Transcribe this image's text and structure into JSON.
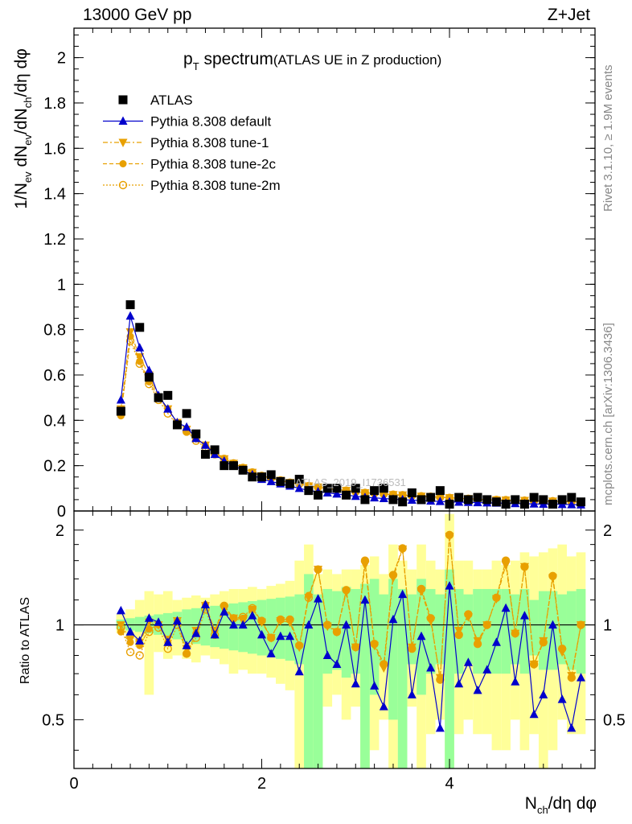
{
  "header": {
    "left": "13000 GeV pp",
    "right": "Z+Jet"
  },
  "side": {
    "rivet": "Rivet 3.1.10, ≥ 1.9M events",
    "mcplots": "mcplots.cern.ch [arXiv:1306.3436]"
  },
  "watermark": "ATLAS_2019_I1736531",
  "colors": {
    "data": "#000000",
    "default": "#0000cc",
    "tunes": "#e8a000",
    "band_outer": "#ffff99",
    "band_inner": "#99ff99"
  },
  "chart_data": [
    {
      "type": "scatter",
      "title_main": "p",
      "title_sub": "T",
      "title_rest": " spectrum",
      "title_note": "(ATLAS UE in Z production)",
      "ylabel": "1/N_ev dN_ev/dN_ch/dη dφ",
      "xlim": [
        0,
        5.55
      ],
      "ylim": [
        0,
        2.13
      ],
      "yticks": [
        "0",
        "0.2",
        "0.4",
        "0.6",
        "0.8",
        "1",
        "1.2",
        "1.4",
        "1.6",
        "1.8",
        "2"
      ],
      "x": [
        0.5,
        0.6,
        0.7,
        0.8,
        0.9,
        1.0,
        1.1,
        1.2,
        1.3,
        1.4,
        1.5,
        1.6,
        1.7,
        1.8,
        1.9,
        2.0,
        2.1,
        2.2,
        2.3,
        2.4,
        2.5,
        2.6,
        2.7,
        2.8,
        2.9,
        3.0,
        3.1,
        3.2,
        3.3,
        3.4,
        3.5,
        3.6,
        3.7,
        3.8,
        3.9,
        4.0,
        4.1,
        4.2,
        4.3,
        4.4,
        4.5,
        4.6,
        4.7,
        4.8,
        4.9,
        5.0,
        5.1,
        5.2,
        5.3,
        5.4
      ],
      "series": [
        {
          "name": "ATLAS",
          "key": "data",
          "values": [
            0.44,
            0.91,
            0.81,
            0.59,
            0.5,
            0.51,
            0.38,
            0.43,
            0.34,
            0.25,
            0.27,
            0.2,
            0.2,
            0.18,
            0.15,
            0.15,
            0.16,
            0.13,
            0.12,
            0.14,
            0.09,
            0.07,
            0.1,
            0.1,
            0.07,
            0.1,
            0.05,
            0.09,
            0.1,
            0.05,
            0.04,
            0.08,
            0.05,
            0.06,
            0.09,
            0.03,
            0.06,
            0.05,
            0.06,
            0.05,
            0.04,
            0.03,
            0.05,
            0.03,
            0.06,
            0.05,
            0.03,
            0.05,
            0.06,
            0.04
          ]
        },
        {
          "name": "Pythia 8.308 default",
          "key": "default",
          "values": [
            0.49,
            0.86,
            0.72,
            0.62,
            0.51,
            0.45,
            0.39,
            0.37,
            0.32,
            0.29,
            0.25,
            0.22,
            0.2,
            0.18,
            0.16,
            0.14,
            0.13,
            0.12,
            0.11,
            0.1,
            0.09,
            0.085,
            0.08,
            0.075,
            0.07,
            0.065,
            0.06,
            0.058,
            0.055,
            0.052,
            0.05,
            0.048,
            0.046,
            0.044,
            0.042,
            0.04,
            0.039,
            0.038,
            0.037,
            0.036,
            0.035,
            0.034,
            0.033,
            0.032,
            0.031,
            0.03,
            0.03,
            0.029,
            0.028,
            0.027
          ]
        },
        {
          "name": "Pythia 8.308 tune-1",
          "key": "tune1",
          "values": [
            0.45,
            0.79,
            0.68,
            0.6,
            0.5,
            0.45,
            0.39,
            0.36,
            0.32,
            0.29,
            0.26,
            0.23,
            0.21,
            0.19,
            0.17,
            0.155,
            0.145,
            0.135,
            0.125,
            0.12,
            0.11,
            0.105,
            0.1,
            0.095,
            0.09,
            0.085,
            0.08,
            0.078,
            0.075,
            0.072,
            0.07,
            0.067,
            0.065,
            0.063,
            0.06,
            0.058,
            0.056,
            0.054,
            0.052,
            0.05,
            0.049,
            0.048,
            0.047,
            0.046,
            0.045,
            0.044,
            0.043,
            0.042,
            0.041,
            0.04
          ]
        },
        {
          "name": "Pythia 8.308 tune-2c",
          "key": "tune2c",
          "values": [
            0.42,
            0.77,
            0.66,
            0.57,
            0.5,
            0.45,
            0.39,
            0.35,
            0.32,
            0.29,
            0.26,
            0.23,
            0.21,
            0.19,
            0.17,
            0.155,
            0.145,
            0.135,
            0.125,
            0.12,
            0.11,
            0.105,
            0.1,
            0.095,
            0.09,
            0.085,
            0.08,
            0.078,
            0.075,
            0.072,
            0.07,
            0.067,
            0.065,
            0.063,
            0.06,
            0.058,
            0.056,
            0.054,
            0.052,
            0.05,
            0.049,
            0.048,
            0.047,
            0.046,
            0.045,
            0.044,
            0.043,
            0.042,
            0.041,
            0.04
          ]
        },
        {
          "name": "Pythia 8.308 tune-2m",
          "key": "tune2m",
          "values": [
            0.43,
            0.75,
            0.65,
            0.56,
            0.49,
            0.43,
            0.38,
            0.35,
            0.31,
            0.28,
            0.25,
            0.23,
            0.21,
            0.19,
            0.17,
            0.155,
            0.145,
            0.135,
            0.125,
            0.12,
            0.11,
            0.105,
            0.1,
            0.095,
            0.09,
            0.085,
            0.08,
            0.078,
            0.075,
            0.072,
            0.07,
            0.067,
            0.065,
            0.063,
            0.06,
            0.058,
            0.056,
            0.054,
            0.052,
            0.05,
            0.049,
            0.048,
            0.047,
            0.046,
            0.045,
            0.044,
            0.043,
            0.042,
            0.041,
            0.04
          ]
        }
      ]
    },
    {
      "type": "scatter",
      "ylabel": "Ratio to ATLAS",
      "xlabel": "N_ch/dη dφ",
      "xlim": [
        0,
        5.55
      ],
      "ylim": [
        0.35,
        2.3
      ],
      "ytick_labels": [
        "0.5",
        "1",
        "2"
      ],
      "ytick_values": [
        0.5,
        1,
        2
      ],
      "xticks": [
        "0",
        "2",
        "4"
      ],
      "xtick_values": [
        0,
        2,
        4
      ],
      "bands_inner": [
        [
          0.97,
          1.04
        ],
        [
          0.96,
          1.05
        ],
        [
          0.95,
          1.06
        ],
        [
          0.94,
          1.07
        ],
        [
          0.93,
          1.08
        ],
        [
          0.92,
          1.09
        ],
        [
          0.9,
          1.1
        ],
        [
          0.88,
          1.12
        ],
        [
          0.87,
          1.13
        ],
        [
          0.86,
          1.14
        ],
        [
          0.85,
          1.15
        ],
        [
          0.84,
          1.16
        ],
        [
          0.83,
          1.17
        ],
        [
          0.82,
          1.18
        ],
        [
          0.81,
          1.19
        ],
        [
          0.8,
          1.2
        ],
        [
          0.79,
          1.21
        ],
        [
          0.78,
          1.22
        ],
        [
          0.77,
          1.23
        ],
        [
          0.75,
          1.25
        ],
        [
          0.35,
          1.45
        ],
        [
          0.35,
          1.25
        ],
        [
          0.7,
          1.3
        ],
        [
          0.72,
          1.28
        ],
        [
          0.68,
          1.32
        ],
        [
          0.7,
          1.3
        ],
        [
          0.35,
          1.35
        ],
        [
          0.6,
          1.4
        ],
        [
          0.75,
          1.25
        ],
        [
          0.5,
          1.4
        ],
        [
          0.35,
          1.3
        ],
        [
          0.75,
          1.25
        ],
        [
          0.6,
          1.4
        ],
        [
          0.7,
          1.3
        ],
        [
          0.75,
          1.25
        ],
        [
          0.35,
          1.5
        ],
        [
          0.7,
          1.3
        ],
        [
          0.75,
          1.25
        ],
        [
          0.7,
          1.3
        ],
        [
          0.7,
          1.3
        ],
        [
          0.7,
          1.3
        ],
        [
          0.7,
          1.3
        ],
        [
          0.75,
          1.25
        ],
        [
          0.7,
          1.3
        ],
        [
          0.8,
          1.2
        ],
        [
          0.72,
          1.28
        ],
        [
          0.72,
          1.28
        ],
        [
          0.75,
          1.25
        ],
        [
          0.72,
          1.28
        ],
        [
          0.7,
          1.3
        ]
      ],
      "bands_outer": [
        [
          0.94,
          1.08
        ],
        [
          0.9,
          1.12
        ],
        [
          0.85,
          1.2
        ],
        [
          0.6,
          1.28
        ],
        [
          0.82,
          1.25
        ],
        [
          0.78,
          1.28
        ],
        [
          0.8,
          1.2
        ],
        [
          0.78,
          1.22
        ],
        [
          0.76,
          1.24
        ],
        [
          0.8,
          1.22
        ],
        [
          0.78,
          1.25
        ],
        [
          0.75,
          1.28
        ],
        [
          0.7,
          1.3
        ],
        [
          0.72,
          1.3
        ],
        [
          0.7,
          1.32
        ],
        [
          0.7,
          1.3
        ],
        [
          0.68,
          1.33
        ],
        [
          0.65,
          1.35
        ],
        [
          0.62,
          1.38
        ],
        [
          0.35,
          1.6
        ],
        [
          0.35,
          1.8
        ],
        [
          0.35,
          1.45
        ],
        [
          0.55,
          1.5
        ],
        [
          0.6,
          1.45
        ],
        [
          0.5,
          1.5
        ],
        [
          0.55,
          1.5
        ],
        [
          0.35,
          1.55
        ],
        [
          0.4,
          1.65
        ],
        [
          0.5,
          1.45
        ],
        [
          0.35,
          1.8
        ],
        [
          0.35,
          1.6
        ],
        [
          0.55,
          1.5
        ],
        [
          0.35,
          1.8
        ],
        [
          0.45,
          1.6
        ],
        [
          0.5,
          1.5
        ],
        [
          0.35,
          2.25
        ],
        [
          0.45,
          1.6
        ],
        [
          0.5,
          1.6
        ],
        [
          0.45,
          1.5
        ],
        [
          0.45,
          1.5
        ],
        [
          0.4,
          1.6
        ],
        [
          0.4,
          1.55
        ],
        [
          0.5,
          1.6
        ],
        [
          0.4,
          1.7
        ],
        [
          0.45,
          1.65
        ],
        [
          0.35,
          1.7
        ],
        [
          0.4,
          1.75
        ],
        [
          0.5,
          1.8
        ],
        [
          0.45,
          1.65
        ],
        [
          0.45,
          1.7
        ]
      ],
      "series": [
        {
          "name": "Pythia 8.308 default",
          "key": "default",
          "values": [
            1.11,
            0.95,
            0.89,
            1.05,
            1.02,
            0.88,
            1.03,
            0.86,
            0.94,
            1.16,
            0.93,
            1.1,
            1.0,
            1.0,
            1.07,
            0.93,
            0.81,
            0.92,
            0.92,
            0.71,
            1.0,
            1.21,
            0.8,
            0.75,
            1.0,
            0.65,
            1.2,
            0.64,
            0.55,
            1.04,
            1.25,
            0.6,
            0.92,
            0.73,
            0.47,
            1.33,
            0.65,
            0.76,
            0.62,
            0.72,
            0.88,
            1.13,
            0.66,
            1.07,
            0.52,
            0.6,
            1.0,
            0.58,
            0.47,
            0.68
          ]
        },
        {
          "name": "Pythia 8.308 tune-1",
          "key": "tune1",
          "values": [
            1.0,
            0.9,
            0.88,
            1.02,
            1.0,
            0.9,
            1.03,
            0.84,
            0.96,
            1.15,
            0.96,
            1.12,
            1.05,
            1.03,
            1.12,
            1.02,
            0.91,
            1.03,
            1.02,
            0.85,
            1.22,
            1.5,
            0.99,
            0.95,
            1.27,
            0.85,
            1.55,
            0.86,
            0.73,
            1.41,
            1.74,
            0.85,
            1.28,
            1.03,
            0.68,
            1.91,
            0.96,
            1.06,
            0.89,
            1.0,
            1.21,
            1.55,
            0.94,
            1.53,
            0.75,
            0.89,
            1.41,
            0.82,
            0.69,
            1.0
          ]
        },
        {
          "name": "Pythia 8.308 tune-2c",
          "key": "tune2c",
          "values": [
            0.95,
            0.88,
            0.86,
            0.97,
            1.0,
            0.88,
            1.03,
            0.81,
            0.94,
            1.16,
            0.96,
            1.15,
            1.05,
            1.05,
            1.12,
            1.03,
            0.91,
            1.04,
            1.04,
            0.86,
            1.24,
            1.5,
            1.0,
            0.95,
            1.29,
            0.85,
            1.6,
            0.87,
            0.75,
            1.44,
            1.75,
            0.84,
            1.3,
            1.05,
            0.67,
            1.93,
            0.93,
            1.08,
            0.87,
            1.0,
            1.22,
            1.6,
            0.94,
            1.53,
            0.75,
            0.88,
            1.43,
            0.84,
            0.68,
            1.0
          ]
        },
        {
          "name": "Pythia 8.308 tune-2m",
          "key": "tune2m",
          "values": [
            0.98,
            0.82,
            0.8,
            0.95,
            0.98,
            0.84,
            1.0,
            0.81,
            0.91,
            1.12,
            0.93,
            1.15,
            1.05,
            1.06,
            1.13,
            1.03,
            0.91,
            1.04,
            1.04,
            0.86,
            1.22,
            1.5,
            1.0,
            0.95,
            1.29,
            0.85,
            1.6,
            0.87,
            0.75,
            1.44,
            1.75,
            0.84,
            1.3,
            1.05,
            0.67,
            1.93,
            0.93,
            1.08,
            0.87,
            1.0,
            1.22,
            1.6,
            0.94,
            1.53,
            0.75,
            0.88,
            1.43,
            0.84,
            0.68,
            1.0
          ]
        }
      ]
    }
  ]
}
